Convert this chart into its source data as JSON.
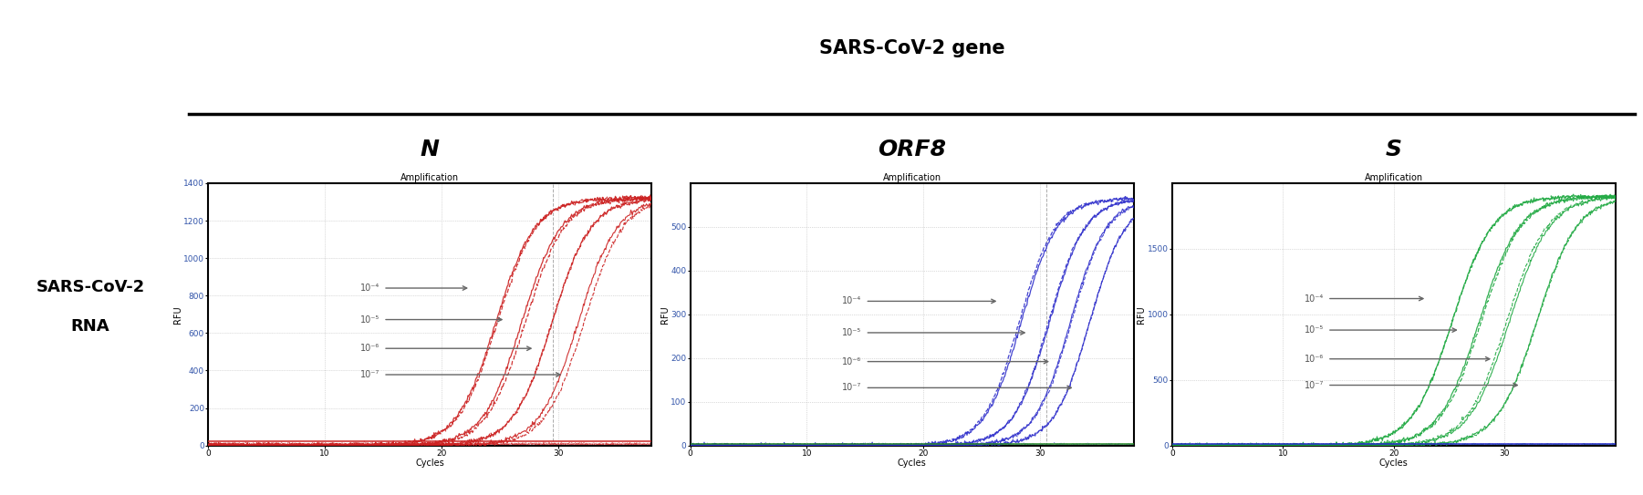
{
  "title": "SARS-CoV-2 gene",
  "row_label_line1": "SARS-CoV-2",
  "row_label_line2": "RNA",
  "genes": [
    "N",
    "ORF8",
    "S"
  ],
  "subplot_title": "Amplification",
  "xlabel": "Cycles",
  "ylabel": "RFU",
  "colors": {
    "N": "#cc2222",
    "ORF8": "#3333cc",
    "S": "#22aa44"
  },
  "neg_ctrl_color_S": "#2222cc",
  "N_ylim": [
    0,
    1400
  ],
  "N_yticks": [
    0,
    200,
    400,
    600,
    800,
    1000,
    1200,
    1400
  ],
  "N_xlim": [
    0,
    38
  ],
  "N_xticks": [
    0,
    10,
    20,
    30
  ],
  "ORF8_ylim": [
    0,
    600
  ],
  "ORF8_yticks": [
    0,
    100,
    200,
    300,
    400,
    500
  ],
  "ORF8_xlim": [
    0,
    38
  ],
  "ORF8_xticks": [
    0,
    10,
    20,
    30
  ],
  "S_ylim": [
    0,
    2000
  ],
  "S_yticks": [
    0,
    500,
    1000,
    1500
  ],
  "S_xlim": [
    0,
    40
  ],
  "S_xticks": [
    0,
    10,
    20,
    30
  ],
  "dilutions": [
    "10⁻⁴",
    "10⁻⁵",
    "10⁻⁶",
    "10⁻⁷"
  ],
  "background_color": "#ffffff",
  "grid_color": "#bbbbbb",
  "arrow_color": "#666666",
  "threshold_color_N": "#cc2222",
  "threshold_color_ORF8": "#228822",
  "threshold_color_S": "#2222cc"
}
